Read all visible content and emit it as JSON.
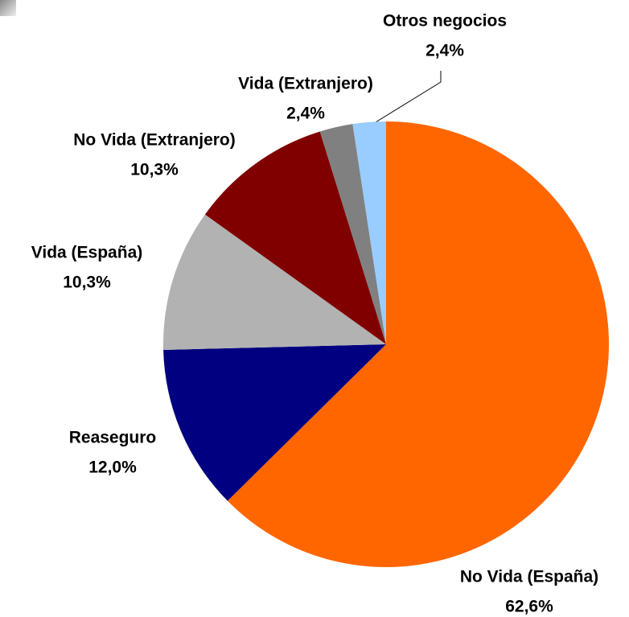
{
  "chart_data": {
    "type": "pie",
    "categories": [
      "No Vida (España)",
      "Reaseguro",
      "Vida (España)",
      "No Vida (Extranjero)",
      "Vida (Extranjero)",
      "Otros negocios"
    ],
    "values": [
      62.6,
      12.0,
      10.3,
      10.3,
      2.4,
      2.4
    ],
    "value_labels": [
      "62,6%",
      "12,0%",
      "10,3%",
      "10,3%",
      "2,4%",
      "2,4%"
    ],
    "colors": [
      "#FF6600",
      "#000080",
      "#B2B2B2",
      "#800000",
      "#808080",
      "#99CCFF"
    ]
  }
}
